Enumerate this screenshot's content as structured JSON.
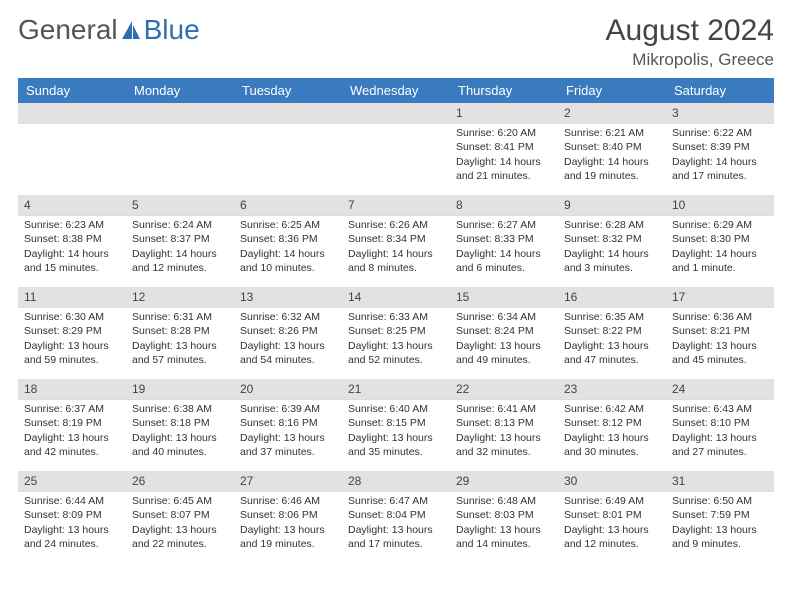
{
  "brand": {
    "part1": "General",
    "part2": "Blue"
  },
  "header": {
    "month_title": "August 2024",
    "location": "Mikropolis, Greece"
  },
  "colors": {
    "header_bg": "#3a7bbf",
    "header_text": "#ffffff",
    "daynum_bg": "#e2e2e2",
    "text": "#333333",
    "brand_blue": "#2f6fb0"
  },
  "layout": {
    "columns": 7,
    "rows": 5
  },
  "weekdays": [
    "Sunday",
    "Monday",
    "Tuesday",
    "Wednesday",
    "Thursday",
    "Friday",
    "Saturday"
  ],
  "weeks": [
    [
      {
        "num": "",
        "sunrise": "",
        "sunset": "",
        "daylight1": "",
        "daylight2": ""
      },
      {
        "num": "",
        "sunrise": "",
        "sunset": "",
        "daylight1": "",
        "daylight2": ""
      },
      {
        "num": "",
        "sunrise": "",
        "sunset": "",
        "daylight1": "",
        "daylight2": ""
      },
      {
        "num": "",
        "sunrise": "",
        "sunset": "",
        "daylight1": "",
        "daylight2": ""
      },
      {
        "num": "1",
        "sunrise": "Sunrise: 6:20 AM",
        "sunset": "Sunset: 8:41 PM",
        "daylight1": "Daylight: 14 hours",
        "daylight2": "and 21 minutes."
      },
      {
        "num": "2",
        "sunrise": "Sunrise: 6:21 AM",
        "sunset": "Sunset: 8:40 PM",
        "daylight1": "Daylight: 14 hours",
        "daylight2": "and 19 minutes."
      },
      {
        "num": "3",
        "sunrise": "Sunrise: 6:22 AM",
        "sunset": "Sunset: 8:39 PM",
        "daylight1": "Daylight: 14 hours",
        "daylight2": "and 17 minutes."
      }
    ],
    [
      {
        "num": "4",
        "sunrise": "Sunrise: 6:23 AM",
        "sunset": "Sunset: 8:38 PM",
        "daylight1": "Daylight: 14 hours",
        "daylight2": "and 15 minutes."
      },
      {
        "num": "5",
        "sunrise": "Sunrise: 6:24 AM",
        "sunset": "Sunset: 8:37 PM",
        "daylight1": "Daylight: 14 hours",
        "daylight2": "and 12 minutes."
      },
      {
        "num": "6",
        "sunrise": "Sunrise: 6:25 AM",
        "sunset": "Sunset: 8:36 PM",
        "daylight1": "Daylight: 14 hours",
        "daylight2": "and 10 minutes."
      },
      {
        "num": "7",
        "sunrise": "Sunrise: 6:26 AM",
        "sunset": "Sunset: 8:34 PM",
        "daylight1": "Daylight: 14 hours",
        "daylight2": "and 8 minutes."
      },
      {
        "num": "8",
        "sunrise": "Sunrise: 6:27 AM",
        "sunset": "Sunset: 8:33 PM",
        "daylight1": "Daylight: 14 hours",
        "daylight2": "and 6 minutes."
      },
      {
        "num": "9",
        "sunrise": "Sunrise: 6:28 AM",
        "sunset": "Sunset: 8:32 PM",
        "daylight1": "Daylight: 14 hours",
        "daylight2": "and 3 minutes."
      },
      {
        "num": "10",
        "sunrise": "Sunrise: 6:29 AM",
        "sunset": "Sunset: 8:30 PM",
        "daylight1": "Daylight: 14 hours",
        "daylight2": "and 1 minute."
      }
    ],
    [
      {
        "num": "11",
        "sunrise": "Sunrise: 6:30 AM",
        "sunset": "Sunset: 8:29 PM",
        "daylight1": "Daylight: 13 hours",
        "daylight2": "and 59 minutes."
      },
      {
        "num": "12",
        "sunrise": "Sunrise: 6:31 AM",
        "sunset": "Sunset: 8:28 PM",
        "daylight1": "Daylight: 13 hours",
        "daylight2": "and 57 minutes."
      },
      {
        "num": "13",
        "sunrise": "Sunrise: 6:32 AM",
        "sunset": "Sunset: 8:26 PM",
        "daylight1": "Daylight: 13 hours",
        "daylight2": "and 54 minutes."
      },
      {
        "num": "14",
        "sunrise": "Sunrise: 6:33 AM",
        "sunset": "Sunset: 8:25 PM",
        "daylight1": "Daylight: 13 hours",
        "daylight2": "and 52 minutes."
      },
      {
        "num": "15",
        "sunrise": "Sunrise: 6:34 AM",
        "sunset": "Sunset: 8:24 PM",
        "daylight1": "Daylight: 13 hours",
        "daylight2": "and 49 minutes."
      },
      {
        "num": "16",
        "sunrise": "Sunrise: 6:35 AM",
        "sunset": "Sunset: 8:22 PM",
        "daylight1": "Daylight: 13 hours",
        "daylight2": "and 47 minutes."
      },
      {
        "num": "17",
        "sunrise": "Sunrise: 6:36 AM",
        "sunset": "Sunset: 8:21 PM",
        "daylight1": "Daylight: 13 hours",
        "daylight2": "and 45 minutes."
      }
    ],
    [
      {
        "num": "18",
        "sunrise": "Sunrise: 6:37 AM",
        "sunset": "Sunset: 8:19 PM",
        "daylight1": "Daylight: 13 hours",
        "daylight2": "and 42 minutes."
      },
      {
        "num": "19",
        "sunrise": "Sunrise: 6:38 AM",
        "sunset": "Sunset: 8:18 PM",
        "daylight1": "Daylight: 13 hours",
        "daylight2": "and 40 minutes."
      },
      {
        "num": "20",
        "sunrise": "Sunrise: 6:39 AM",
        "sunset": "Sunset: 8:16 PM",
        "daylight1": "Daylight: 13 hours",
        "daylight2": "and 37 minutes."
      },
      {
        "num": "21",
        "sunrise": "Sunrise: 6:40 AM",
        "sunset": "Sunset: 8:15 PM",
        "daylight1": "Daylight: 13 hours",
        "daylight2": "and 35 minutes."
      },
      {
        "num": "22",
        "sunrise": "Sunrise: 6:41 AM",
        "sunset": "Sunset: 8:13 PM",
        "daylight1": "Daylight: 13 hours",
        "daylight2": "and 32 minutes."
      },
      {
        "num": "23",
        "sunrise": "Sunrise: 6:42 AM",
        "sunset": "Sunset: 8:12 PM",
        "daylight1": "Daylight: 13 hours",
        "daylight2": "and 30 minutes."
      },
      {
        "num": "24",
        "sunrise": "Sunrise: 6:43 AM",
        "sunset": "Sunset: 8:10 PM",
        "daylight1": "Daylight: 13 hours",
        "daylight2": "and 27 minutes."
      }
    ],
    [
      {
        "num": "25",
        "sunrise": "Sunrise: 6:44 AM",
        "sunset": "Sunset: 8:09 PM",
        "daylight1": "Daylight: 13 hours",
        "daylight2": "and 24 minutes."
      },
      {
        "num": "26",
        "sunrise": "Sunrise: 6:45 AM",
        "sunset": "Sunset: 8:07 PM",
        "daylight1": "Daylight: 13 hours",
        "daylight2": "and 22 minutes."
      },
      {
        "num": "27",
        "sunrise": "Sunrise: 6:46 AM",
        "sunset": "Sunset: 8:06 PM",
        "daylight1": "Daylight: 13 hours",
        "daylight2": "and 19 minutes."
      },
      {
        "num": "28",
        "sunrise": "Sunrise: 6:47 AM",
        "sunset": "Sunset: 8:04 PM",
        "daylight1": "Daylight: 13 hours",
        "daylight2": "and 17 minutes."
      },
      {
        "num": "29",
        "sunrise": "Sunrise: 6:48 AM",
        "sunset": "Sunset: 8:03 PM",
        "daylight1": "Daylight: 13 hours",
        "daylight2": "and 14 minutes."
      },
      {
        "num": "30",
        "sunrise": "Sunrise: 6:49 AM",
        "sunset": "Sunset: 8:01 PM",
        "daylight1": "Daylight: 13 hours",
        "daylight2": "and 12 minutes."
      },
      {
        "num": "31",
        "sunrise": "Sunrise: 6:50 AM",
        "sunset": "Sunset: 7:59 PM",
        "daylight1": "Daylight: 13 hours",
        "daylight2": "and 9 minutes."
      }
    ]
  ]
}
